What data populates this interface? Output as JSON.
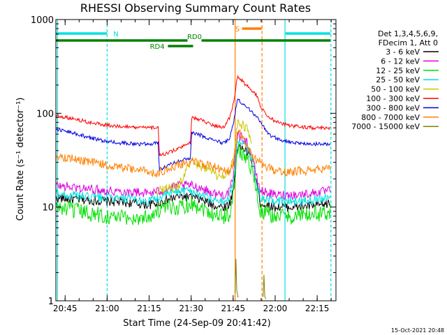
{
  "chart_data": {
    "type": "line",
    "title": "RHESSI Observing Summary Count Rates",
    "xlabel": "Start Time (24-Sep-09 20:41:42)",
    "ylabel": "Count Rate (s⁻¹ detector⁻¹)",
    "ylog": true,
    "ylim": [
      1,
      1000
    ],
    "xlim_minutes": [
      0,
      100
    ],
    "x_start": "20:41:42",
    "x_ticks": [
      {
        "label": "20:45",
        "t": 3.3
      },
      {
        "label": "21:00",
        "t": 18.3
      },
      {
        "label": "21:15",
        "t": 33.3
      },
      {
        "label": "21:30",
        "t": 48.3
      },
      {
        "label": "21:45",
        "t": 63.3
      },
      {
        "label": "22:00",
        "t": 78.3
      },
      {
        "label": "22:15",
        "t": 93.3
      }
    ],
    "y_ticks": [
      {
        "label": "1",
        "v": 1
      },
      {
        "label": "10",
        "v": 10
      },
      {
        "label": "100",
        "v": 100
      },
      {
        "label": "1000",
        "v": 1000
      }
    ],
    "legend_header": [
      "Det 1,3,4,5,6,9,",
      "FDecim 1, Att 0"
    ],
    "legend_placement": "right",
    "series": [
      {
        "name": "3 - 6 keV",
        "color": "#000000",
        "points": [
          [
            0,
            12.5
          ],
          [
            8,
            12
          ],
          [
            18,
            11.5
          ],
          [
            28,
            11
          ],
          [
            33,
            10.5
          ],
          [
            38,
            11.5
          ],
          [
            44,
            13
          ],
          [
            48,
            12.8
          ],
          [
            52,
            12
          ],
          [
            56,
            10.5
          ],
          [
            60,
            10
          ],
          [
            62,
            10.8
          ],
          [
            63.5,
            16
          ],
          [
            64.8,
            45
          ],
          [
            68,
            40
          ],
          [
            70,
            30
          ],
          [
            71.5,
            20
          ],
          [
            73,
            11
          ],
          [
            78,
            10
          ],
          [
            86,
            10
          ],
          [
            95,
            10.5
          ],
          [
            98,
            11
          ]
        ]
      },
      {
        "name": "6 - 12 keV",
        "color": "#e000e0",
        "points": [
          [
            0,
            17
          ],
          [
            8,
            16
          ],
          [
            18,
            15
          ],
          [
            28,
            14.5
          ],
          [
            33,
            14
          ],
          [
            38,
            15
          ],
          [
            44,
            17
          ],
          [
            48,
            17
          ],
          [
            52,
            16
          ],
          [
            56,
            14
          ],
          [
            60,
            13.5
          ],
          [
            62,
            14.5
          ],
          [
            63.5,
            22
          ],
          [
            64.8,
            60
          ],
          [
            68,
            50
          ],
          [
            70,
            35
          ],
          [
            71.5,
            22
          ],
          [
            73,
            15
          ],
          [
            78,
            13.5
          ],
          [
            86,
            13.5
          ],
          [
            95,
            14.5
          ],
          [
            98,
            15
          ]
        ]
      },
      {
        "name": "12 - 25 keV",
        "color": "#00e000",
        "points": [
          [
            0,
            10
          ],
          [
            8,
            9
          ],
          [
            18,
            8
          ],
          [
            28,
            7.5
          ],
          [
            33,
            8
          ],
          [
            38,
            9.5
          ],
          [
            44,
            10
          ],
          [
            48,
            11
          ],
          [
            52,
            10
          ],
          [
            56,
            8.5
          ],
          [
            60,
            8
          ],
          [
            62,
            8.5
          ],
          [
            63.5,
            14
          ],
          [
            64.8,
            40
          ],
          [
            68,
            35
          ],
          [
            70,
            25
          ],
          [
            71.5,
            15
          ],
          [
            73,
            9
          ],
          [
            78,
            8
          ],
          [
            86,
            8
          ],
          [
            95,
            8.5
          ],
          [
            98,
            9
          ]
        ]
      },
      {
        "name": "25 - 50 keV",
        "color": "#00e0e0",
        "points": [
          [
            0,
            14
          ],
          [
            8,
            13
          ],
          [
            18,
            12.5
          ],
          [
            28,
            12
          ],
          [
            33,
            11.5
          ],
          [
            38,
            13
          ],
          [
            44,
            15
          ],
          [
            48,
            15
          ],
          [
            52,
            13.5
          ],
          [
            56,
            12
          ],
          [
            60,
            11.5
          ],
          [
            62,
            12.5
          ],
          [
            63.5,
            20
          ],
          [
            64.8,
            50
          ],
          [
            68,
            45
          ],
          [
            70,
            32
          ],
          [
            71.5,
            20
          ],
          [
            73,
            12
          ],
          [
            78,
            11.5
          ],
          [
            86,
            11.5
          ],
          [
            95,
            12.5
          ],
          [
            98,
            13
          ]
        ]
      },
      {
        "name": "50 - 100 keV",
        "color": "#c8c800",
        "points": [
          [
            36,
            15
          ],
          [
            40,
            16
          ],
          [
            44,
            17
          ],
          [
            48,
            30
          ],
          [
            50,
            29
          ],
          [
            52,
            27
          ],
          [
            54,
            26
          ],
          [
            56,
            23
          ],
          [
            58,
            21
          ],
          [
            60,
            21.5
          ],
          [
            62,
            23
          ],
          [
            63.5,
            35
          ],
          [
            64.8,
            80
          ],
          [
            68,
            70
          ],
          [
            70,
            50
          ]
        ]
      },
      {
        "name": "100 - 300 keV",
        "color": "#ff0000",
        "points": [
          [
            0,
            95
          ],
          [
            6,
            88
          ],
          [
            12,
            80
          ],
          [
            18,
            75
          ],
          [
            24,
            72
          ],
          [
            30,
            70
          ],
          [
            36.5,
            70
          ],
          [
            37,
            35
          ],
          [
            40,
            38
          ],
          [
            44,
            42
          ],
          [
            48,
            48
          ],
          [
            48.5,
            90
          ],
          [
            52,
            85
          ],
          [
            56,
            75
          ],
          [
            60,
            70
          ],
          [
            62,
            90
          ],
          [
            63.5,
            130
          ],
          [
            64.8,
            250
          ],
          [
            68,
            200
          ],
          [
            72,
            150
          ],
          [
            73,
            120
          ],
          [
            76,
            90
          ],
          [
            80,
            78
          ],
          [
            86,
            72
          ],
          [
            92,
            70
          ],
          [
            98,
            70
          ]
        ]
      },
      {
        "name": "300 - 800 keV",
        "color": "#0000e0",
        "points": [
          [
            0,
            68
          ],
          [
            6,
            62
          ],
          [
            12,
            55
          ],
          [
            18,
            50
          ],
          [
            24,
            48
          ],
          [
            30,
            47
          ],
          [
            36.5,
            48
          ],
          [
            37,
            25
          ],
          [
            40,
            28
          ],
          [
            44,
            31
          ],
          [
            48,
            33
          ],
          [
            48.5,
            62
          ],
          [
            52,
            58
          ],
          [
            56,
            52
          ],
          [
            60,
            48
          ],
          [
            62,
            55
          ],
          [
            63.5,
            80
          ],
          [
            64.8,
            140
          ],
          [
            68,
            120
          ],
          [
            72,
            90
          ],
          [
            73,
            80
          ],
          [
            76,
            60
          ],
          [
            80,
            52
          ],
          [
            86,
            48
          ],
          [
            92,
            47
          ],
          [
            98,
            47
          ]
        ]
      },
      {
        "name": "800 - 7000 keV",
        "color": "#ff8000",
        "points": [
          [
            0,
            35
          ],
          [
            6,
            33
          ],
          [
            12,
            30
          ],
          [
            18,
            28
          ],
          [
            24,
            26
          ],
          [
            30,
            25
          ],
          [
            36,
            23
          ],
          [
            40,
            25
          ],
          [
            44,
            28
          ],
          [
            48,
            30
          ],
          [
            52,
            29
          ],
          [
            56,
            27
          ],
          [
            60,
            24
          ],
          [
            62,
            24
          ],
          [
            63.5,
            30
          ],
          [
            64.8,
            60
          ],
          [
            66,
            60
          ],
          [
            68,
            45
          ],
          [
            70,
            35
          ],
          [
            73,
            30
          ],
          [
            76,
            26
          ],
          [
            80,
            24
          ],
          [
            86,
            24
          ],
          [
            92,
            25
          ],
          [
            98,
            26
          ]
        ]
      },
      {
        "name": "7000 - 15000 keV",
        "color": "#808000",
        "points": [
          [
            64,
            1.2
          ],
          [
            64.3,
            2.8
          ],
          [
            64.6,
            1.3
          ],
          [
            65,
            1.1
          ],
          [
            74,
            1.1
          ],
          [
            74.3,
            1.9
          ],
          [
            74.6,
            1.1
          ],
          [
            75,
            1.05
          ]
        ]
      }
    ],
    "annotations": [
      {
        "label": "N",
        "color": "#00e0e0",
        "bars": [
          [
            0,
            18.3
          ],
          [
            82,
            98
          ]
        ]
      },
      {
        "label": "RD0",
        "color": "#008000",
        "bars": [
          [
            0,
            47
          ],
          [
            52,
            98
          ]
        ]
      },
      {
        "label": "RD4",
        "color": "#008000",
        "bars": [
          [
            40,
            49
          ]
        ]
      },
      {
        "label": "S",
        "color": "#ff8000",
        "bars": [
          [
            66.5,
            73.5
          ]
        ]
      }
    ],
    "footer": "15-Oct-2021 20:48"
  }
}
